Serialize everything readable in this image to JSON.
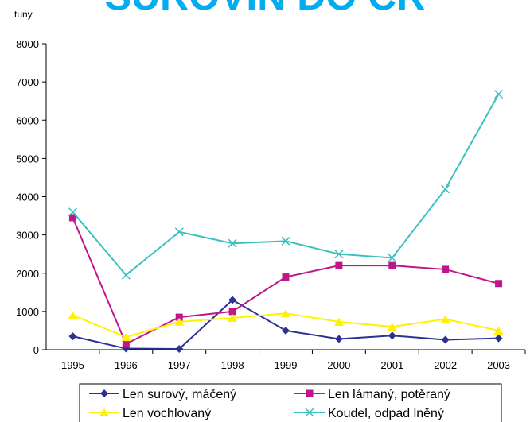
{
  "chart_data": {
    "type": "line",
    "title": "SUROVIN DO ČR",
    "ylabel": "tuny",
    "categories": [
      "1995",
      "1996",
      "1997",
      "1998",
      "1999",
      "2000",
      "2001",
      "2002",
      "2003"
    ],
    "ylim": [
      0,
      8000
    ],
    "yticks": [
      0,
      1000,
      2000,
      3000,
      4000,
      5000,
      6000,
      7000,
      8000
    ],
    "grid": false,
    "series": [
      {
        "name": "Len surový, máčený",
        "color": "#2e3192",
        "marker": "diamond",
        "values": [
          350,
          30,
          20,
          1300,
          500,
          280,
          370,
          260,
          300
        ]
      },
      {
        "name": "Len lámaný, potěraný",
        "color": "#c0168c",
        "marker": "square",
        "values": [
          3450,
          150,
          850,
          1000,
          1900,
          2200,
          2200,
          2100,
          1730
        ]
      },
      {
        "name": "Len vochlovaný",
        "color": "#fff200",
        "marker": "triangle",
        "values": [
          900,
          330,
          730,
          830,
          950,
          730,
          600,
          800,
          500
        ]
      },
      {
        "name": "Koudel, odpad lněný",
        "color": "#3dbfbf",
        "marker": "x",
        "values": [
          3600,
          1950,
          3080,
          2780,
          2840,
          2500,
          2400,
          4200,
          6680
        ]
      }
    ]
  }
}
